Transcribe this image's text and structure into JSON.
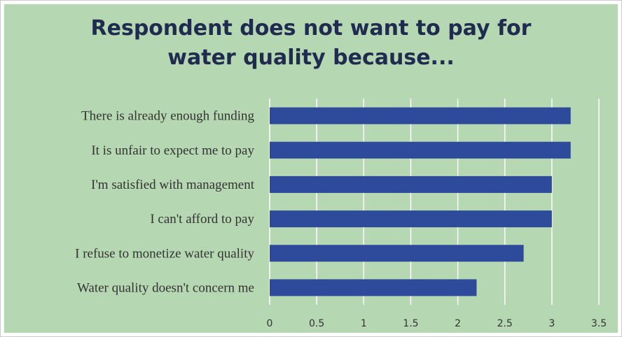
{
  "chart_data": {
    "type": "bar",
    "orientation": "horizontal",
    "title": "Respondent does not want to pay for water quality because...",
    "title_lines": [
      "Respondent does not want to pay for",
      "water quality because..."
    ],
    "categories": [
      "There is already enough funding",
      "It is unfair to expect me to pay",
      "I'm satisfied with management",
      "I can't afford to pay",
      "I refuse to monetize water quality",
      "Water quality doesn't concern me"
    ],
    "values": [
      3.2,
      3.2,
      3.0,
      3.0,
      2.7,
      2.2
    ],
    "xlim": [
      0,
      3.5
    ],
    "x_ticks": [
      "0",
      "0.5",
      "1",
      "1.5",
      "2",
      "2.5",
      "3",
      "3.5"
    ],
    "xlabel": "",
    "ylabel": "",
    "grid": true,
    "legend": "none"
  },
  "colors": {
    "background": "#b5d7b1",
    "bar": "#2e4a9a",
    "title": "#1f2b4f",
    "text": "#333333",
    "grid": "#ffffff"
  }
}
